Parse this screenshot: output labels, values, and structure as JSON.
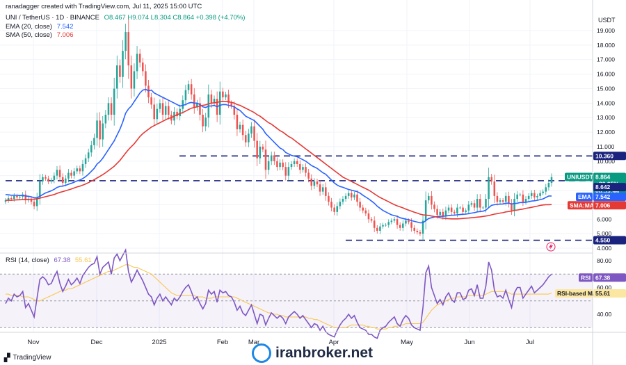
{
  "header": {
    "attribution": "ranadagger created with TradingView.com, Jul 11, 2025 15:00 UTC",
    "symbol": "UNI / TetherUS · 1D · BINANCE",
    "ohlc": "O8.467  H9.074  L8.304  C8.864  +0.398 (+4.70%)",
    "ema_label": "EMA (20, close)",
    "ema_value": "7.542",
    "sma_label": "SMA (50, close)",
    "sma_value": "7.006",
    "rsi_label": "RSI (14, close)",
    "rsi_value": "67.38",
    "rsi_ma_value": "55.61"
  },
  "footer": {
    "brand": "TradingView",
    "watermark": "iranbroker.net"
  },
  "colors": {
    "up": "#26a69a",
    "down": "#ef5350",
    "ema": "#2962ff",
    "sma": "#e53935",
    "rsi": "#7e57c2",
    "rsi_ma": "#f9c74f",
    "level": "#1a237e"
  },
  "chart_data": {
    "type": "candlestick",
    "currency": "USDT",
    "y_ticks": [
      "19.000",
      "18.000",
      "17.000",
      "16.000",
      "15.000",
      "14.000",
      "13.000",
      "12.000",
      "11.000",
      "10.000",
      "9.000",
      "8.000",
      "7.000",
      "6.000",
      "5.000",
      "4.000"
    ],
    "x_ticks": [
      "Nov",
      "Dec",
      "2025",
      "Feb",
      "Mar",
      "Apr",
      "May",
      "Jun",
      "Jul"
    ],
    "levels": [
      {
        "value": 10.36,
        "label": "10.360"
      },
      {
        "value": 8.65,
        "label": ""
      },
      {
        "value": 4.55,
        "label": "4.550"
      }
    ],
    "price_tags": [
      {
        "label": "UNIUSDT",
        "value": "8.864",
        "extra": "+20.65%",
        "timer": "08:59:44"
      },
      {
        "label": "",
        "value": "8.642"
      },
      {
        "label": "EMA",
        "value": "7.542"
      },
      {
        "label": "SMA:MA",
        "value": "7.006"
      }
    ],
    "closes": [
      7.3,
      7.45,
      7.4,
      7.6,
      7.5,
      7.55,
      7.7,
      7.3,
      7.4,
      7.2,
      6.9,
      7.5,
      8.6,
      8.9,
      8.8,
      8.6,
      8.7,
      9.0,
      9.4,
      8.9,
      8.5,
      8.8,
      9.2,
      9.0,
      9.3,
      9.5,
      9.3,
      9.8,
      10.2,
      10.6,
      11.1,
      11.6,
      12.8,
      11.5,
      12.6,
      13.2,
      14.0,
      13.2,
      15.0,
      16.6,
      15.8,
      17.6,
      18.9,
      16.6,
      15.0,
      16.2,
      17.4,
      16.8,
      16.2,
      15.2,
      14.4,
      13.9,
      12.9,
      13.6,
      14.0,
      13.2,
      13.8,
      13.2,
      12.8,
      13.4,
      13.1,
      13.6,
      14.2,
      14.9,
      15.3,
      14.6,
      13.7,
      14.0,
      13.2,
      12.4,
      13.0,
      14.6,
      14.0,
      14.3,
      13.2,
      14.8,
      14.4,
      14.6,
      14.0,
      13.8,
      13.2,
      12.2,
      12.5,
      11.8,
      11.3,
      11.9,
      12.4,
      11.4,
      10.2,
      11.0,
      10.8,
      9.4,
      10.0,
      10.4,
      10.0,
      9.6,
      9.9,
      9.6,
      9.0,
      9.6,
      9.8,
      10.0,
      9.8,
      9.4,
      9.6,
      9.2,
      8.8,
      8.3,
      8.6,
      8.4,
      7.9,
      8.2,
      7.6,
      7.2,
      6.8,
      6.5,
      6.9,
      7.2,
      7.4,
      7.6,
      7.8,
      7.5,
      7.7,
      7.2,
      6.8,
      6.6,
      6.4,
      6.0,
      5.9,
      5.4,
      5.2,
      5.5,
      5.6,
      5.6,
      5.8,
      5.9,
      6.0,
      5.6,
      5.4,
      5.7,
      5.9,
      5.8,
      5.4,
      5.2,
      5.1,
      5.0,
      5.9,
      7.3,
      7.6,
      7.0,
      6.7,
      6.3,
      6.5,
      6.2,
      6.6,
      6.8,
      6.5,
      6.4,
      6.8,
      6.8,
      6.5,
      6.6,
      7.0,
      7.1,
      6.8,
      7.4,
      6.8,
      6.8,
      7.4,
      8.9,
      8.6,
      7.6,
      7.2,
      7.3,
      7.2,
      7.6,
      7.1,
      6.6,
      7.4,
      7.7,
      7.7,
      7.2,
      7.4,
      7.6,
      7.8,
      7.5,
      7.6,
      7.8,
      7.9,
      8.2,
      8.5,
      8.9
    ],
    "ema": [
      7.7,
      7.68,
      7.65,
      7.65,
      7.64,
      7.63,
      7.64,
      7.6,
      7.58,
      7.54,
      7.48,
      7.48,
      7.58,
      7.7,
      7.81,
      7.88,
      7.96,
      8.06,
      8.19,
      8.26,
      8.28,
      8.33,
      8.41,
      8.47,
      8.55,
      8.64,
      8.7,
      8.8,
      8.93,
      9.1,
      9.3,
      9.5,
      9.8,
      9.96,
      10.2,
      10.5,
      10.8,
      11.1,
      11.4,
      11.8,
      12.2,
      12.7,
      13.3,
      13.6,
      13.8,
      14.1,
      14.4,
      14.7,
      14.9,
      14.95,
      14.85,
      14.9,
      14.7,
      14.6,
      14.5,
      14.4,
      14.3,
      14.2,
      14.1,
      14.0,
      13.9,
      13.8,
      13.85,
      13.9,
      14.0,
      14.05,
      14.0,
      14.0,
      13.9,
      13.75,
      13.7,
      13.8,
      13.8,
      13.85,
      13.75,
      13.85,
      13.9,
      13.9,
      13.85,
      13.8,
      13.75,
      13.6,
      13.5,
      13.3,
      13.1,
      13.0,
      12.9,
      12.8,
      12.6,
      12.4,
      12.2,
      11.9,
      11.7,
      11.5,
      11.3,
      11.1,
      10.9,
      10.8,
      10.6,
      10.5,
      10.4,
      10.35,
      10.3,
      10.2,
      10.1,
      10.0,
      9.85,
      9.7,
      9.6,
      9.5,
      9.35,
      9.2,
      9.1,
      8.9,
      8.7,
      8.5,
      8.35,
      8.25,
      8.2,
      8.12,
      8.05,
      8.0,
      7.95,
      7.9,
      7.8,
      7.65,
      7.52,
      7.4,
      7.25,
      7.1,
      6.9,
      6.75,
      6.6,
      6.5,
      6.4,
      6.3,
      6.25,
      6.2,
      6.1,
      6.05,
      6.0,
      5.97,
      5.9,
      5.85,
      5.8,
      5.75,
      5.76,
      5.9,
      6.05,
      6.1,
      6.15,
      6.18,
      6.2,
      6.2,
      6.22,
      6.25,
      6.27,
      6.28,
      6.3,
      6.32,
      6.34,
      6.35,
      6.38,
      6.42,
      6.45,
      6.5,
      6.53,
      6.55,
      6.62,
      6.8,
      6.95,
      7.0,
      7.02,
      7.04,
      7.05,
      7.1,
      7.1,
      7.05,
      7.08,
      7.1,
      7.15,
      7.15,
      7.17,
      7.2,
      7.25,
      7.27,
      7.3,
      7.35,
      7.4,
      7.5,
      7.6,
      7.6
    ],
    "sma": [
      7.3,
      7.3,
      7.3,
      7.32,
      7.33,
      7.34,
      7.35,
      7.36,
      7.37,
      7.38,
      7.38,
      7.4,
      7.45,
      7.5,
      7.55,
      7.6,
      7.65,
      7.7,
      7.78,
      7.85,
      7.9,
      7.96,
      8.02,
      8.08,
      8.15,
      8.22,
      8.28,
      8.35,
      8.43,
      8.52,
      8.62,
      8.72,
      8.84,
      8.95,
      9.07,
      9.2,
      9.35,
      9.5,
      9.65,
      9.85,
      10.05,
      10.3,
      10.55,
      10.8,
      11.0,
      11.2,
      11.45,
      11.7,
      11.9,
      12.05,
      12.2,
      12.35,
      12.45,
      12.55,
      12.65,
      12.75,
      12.85,
      12.95,
      13.0,
      13.1,
      13.2,
      13.28,
      13.35,
      13.45,
      13.55,
      13.65,
      13.7,
      13.75,
      13.8,
      13.85,
      13.88,
      13.95,
      14.0,
      14.02,
      14.05,
      14.1,
      14.1,
      14.12,
      14.1,
      14.05,
      14.0,
      13.9,
      13.85,
      13.75,
      13.65,
      13.55,
      13.45,
      13.35,
      13.2,
      13.1,
      12.95,
      12.8,
      12.65,
      12.55,
      12.4,
      12.25,
      12.1,
      12.0,
      11.85,
      11.7,
      11.6,
      11.45,
      11.3,
      11.15,
      11.0,
      10.85,
      10.7,
      10.55,
      10.4,
      10.25,
      10.1,
      9.95,
      9.8,
      9.65,
      9.5,
      9.35,
      9.2,
      9.05,
      8.9,
      8.8,
      8.7,
      8.6,
      8.5,
      8.4,
      8.3,
      8.2,
      8.1,
      8.0,
      7.88,
      7.75,
      7.62,
      7.5,
      7.4,
      7.3,
      7.2,
      7.1,
      7.0,
      6.92,
      6.85,
      6.78,
      6.7,
      6.62,
      6.55,
      6.48,
      6.42,
      6.35,
      6.3,
      6.28,
      6.26,
      6.22,
      6.18,
      6.14,
      6.1,
      6.07,
      6.05,
      6.03,
      6.02,
      6.02,
      6.02,
      6.03,
      6.05,
      6.07,
      6.08,
      6.1,
      6.12,
      6.14,
      6.16,
      6.19,
      6.22,
      6.25,
      6.3,
      6.35,
      6.38,
      6.42,
      6.45,
      6.5,
      6.53,
      6.56,
      6.6,
      6.63,
      6.67,
      6.7,
      6.75,
      6.78,
      6.82,
      6.86,
      6.9,
      6.95,
      6.98,
      7.0,
      7.0,
      7.01
    ],
    "rsi": [
      48,
      52,
      50,
      55,
      53,
      54,
      57,
      45,
      48,
      43,
      38,
      52,
      66,
      68,
      66,
      62,
      63,
      68,
      72,
      63,
      57,
      61,
      66,
      62,
      64,
      67,
      63,
      69,
      72,
      75,
      77,
      78,
      83,
      70,
      75,
      77,
      79,
      70,
      82,
      85,
      80,
      84,
      88,
      72,
      64,
      68,
      73,
      69,
      65,
      60,
      55,
      53,
      47,
      52,
      55,
      50,
      53,
      50,
      47,
      52,
      50,
      53,
      57,
      60,
      62,
      57,
      51,
      53,
      48,
      44,
      48,
      58,
      55,
      57,
      49,
      58,
      56,
      57,
      54,
      53,
      49,
      43,
      46,
      41,
      39,
      43,
      47,
      40,
      33,
      40,
      39,
      32,
      37,
      41,
      39,
      37,
      39,
      37,
      33,
      38,
      40,
      42,
      40,
      37,
      39,
      36,
      33,
      30,
      33,
      32,
      28,
      31,
      27,
      25,
      24,
      23,
      28,
      32,
      35,
      37,
      40,
      37,
      39,
      34,
      30,
      29,
      28,
      25,
      25,
      23,
      22,
      28,
      30,
      31,
      34,
      36,
      38,
      33,
      31,
      36,
      39,
      37,
      32,
      30,
      29,
      28,
      45,
      71,
      76,
      60,
      54,
      48,
      51,
      47,
      53,
      56,
      51,
      49,
      56,
      56,
      51,
      52,
      58,
      59,
      54,
      62,
      52,
      52,
      61,
      79,
      73,
      58,
      53,
      54,
      52,
      58,
      51,
      45,
      56,
      60,
      60,
      52,
      55,
      58,
      61,
      56,
      58,
      60,
      62,
      65,
      68,
      70
    ],
    "rsi_ma": [
      55,
      55,
      54,
      54,
      54,
      54,
      53,
      53,
      53,
      52,
      51,
      50,
      50,
      51,
      52,
      53,
      54,
      55,
      56,
      57,
      58,
      58,
      59,
      59,
      60,
      61,
      62,
      63,
      64,
      65,
      66,
      67,
      68,
      69,
      70,
      71,
      72,
      72,
      73,
      74,
      75,
      76,
      77,
      77,
      76,
      75,
      75,
      74,
      73,
      72,
      71,
      70,
      68,
      66,
      64,
      62,
      60,
      58,
      56,
      55,
      54,
      54,
      54,
      54,
      54,
      54,
      54,
      53,
      53,
      53,
      52,
      52,
      52,
      53,
      53,
      53,
      53,
      53,
      53,
      53,
      53,
      52,
      51,
      50,
      49,
      48,
      47,
      46,
      45,
      44,
      43,
      42,
      41,
      41,
      40,
      40,
      39,
      39,
      38,
      38,
      38,
      38,
      38,
      38,
      38,
      38,
      37,
      37,
      36,
      36,
      35,
      34,
      33,
      32,
      31,
      30,
      30,
      30,
      30,
      30,
      31,
      32,
      32,
      32,
      32,
      32,
      31,
      31,
      30,
      30,
      29,
      29,
      29,
      29,
      30,
      30,
      31,
      31,
      32,
      32,
      33,
      33,
      33,
      33,
      33,
      33,
      34,
      37,
      40,
      43,
      45,
      47,
      48,
      49,
      50,
      51,
      52,
      52,
      53,
      53,
      53,
      53,
      54,
      54,
      54,
      54,
      54,
      54,
      55,
      56,
      57,
      57,
      57,
      57,
      57,
      57,
      56,
      55,
      55,
      55,
      55,
      55,
      55,
      55,
      55,
      55,
      55,
      55,
      55,
      55,
      55,
      56
    ]
  }
}
